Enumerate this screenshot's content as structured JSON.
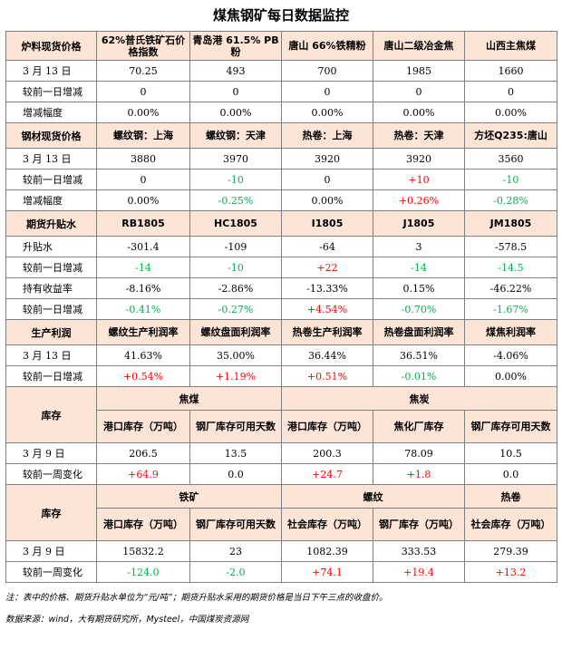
{
  "title": "煤焦钢矿每日数据监控",
  "s1": {
    "header": [
      "炉料现货价格",
      "62%普氏铁矿石价格指数",
      "青岛港 61.5% PB粉",
      "唐山 66%铁精粉",
      "唐山二级冶金焦",
      "山西主焦煤"
    ],
    "rows": [
      [
        "3 月 13 日",
        "70.25",
        "493",
        "700",
        "1985",
        "1660"
      ],
      [
        "较前一日增减",
        "0",
        "0",
        "0",
        "0",
        "0"
      ],
      [
        "增减幅度",
        "0.00%",
        "0.00%",
        "0.00%",
        "0.00%",
        "0.00%"
      ]
    ]
  },
  "s2": {
    "header": [
      "钢材现货价格",
      "螺纹钢：上海",
      "螺纹钢：天津",
      "热卷：上海",
      "热卷：天津",
      "方坯Q235:唐山"
    ],
    "rows": [
      [
        "3 月 13 日",
        "3880",
        "3970",
        "3920",
        "3920",
        "3560"
      ],
      [
        "较前一日增减",
        "0",
        "-10",
        "0",
        "+10",
        "-10"
      ],
      [
        "增减幅度",
        "0.00%",
        "-0.25%",
        "0.00%",
        "+0.26%",
        "-0.28%"
      ]
    ]
  },
  "s3": {
    "header": [
      "期货升贴水",
      "RB1805",
      "HC1805",
      "I1805",
      "J1805",
      "JM1805"
    ],
    "rows": [
      [
        "升贴水",
        "-301.4",
        "-109",
        "-64",
        "3",
        "-578.5"
      ],
      [
        "较前一日增减",
        "-14",
        "-10",
        "+22",
        "-14",
        "-14.5"
      ],
      [
        "持有收益率",
        "-8.16%",
        "-2.86%",
        "-13.33%",
        "0.15%",
        "-46.22%"
      ],
      [
        "较前一日增减",
        "-0.41%",
        "-0.27%",
        "+4.54%",
        "-0.70%",
        "-1.67%"
      ]
    ]
  },
  "s4": {
    "header": [
      "生产利润",
      "螺纹生产利润率",
      "螺纹盘面利润率",
      "热卷生产利润率",
      "热卷盘面利润率",
      "煤焦利润率"
    ],
    "rows": [
      [
        "3 月 13 日",
        "41.63%",
        "35.00%",
        "36.44%",
        "36.51%",
        "-4.06%"
      ],
      [
        "较前一日增减",
        "+0.54%",
        "+1.19%",
        "+0.51%",
        "-0.01%",
        "0.00%"
      ]
    ]
  },
  "s5": {
    "label": "库存",
    "groups": [
      "焦煤",
      "焦炭"
    ],
    "sub": [
      "港口库存（万吨）",
      "钢厂库存可用天数",
      "港口库存（万吨）",
      "焦化厂库存",
      "钢厂库存可用天数"
    ],
    "rows": [
      [
        "3 月 9 日",
        "206.5",
        "13.5",
        "200.3",
        "78.09",
        "10.5"
      ],
      [
        "较前一周变化",
        "+64.9",
        "0.0",
        "+24.7",
        "+1.8",
        "0.0"
      ]
    ]
  },
  "s6": {
    "label": "库存",
    "groups": [
      "铁矿",
      "螺纹",
      "热卷"
    ],
    "sub": [
      "港口库存（万吨）",
      "钢厂库存可用天数",
      "社会库存（万吨）",
      "钢厂库存（万吨）",
      "社会库存（万吨）"
    ],
    "rows": [
      [
        "3 月 9 日",
        "15832.2",
        "23",
        "1082.39",
        "333.53",
        "279.39"
      ],
      [
        "较前一周变化",
        "-124.0",
        "-2.0",
        "+74.1",
        "+19.4",
        "+13.2"
      ]
    ]
  },
  "notes": {
    "n1": "注：表中的价格、期货升贴水单位为“元/吨”；期货升贴水采用的期货价格是当日下午三点的收盘价。",
    "n2": "数据来源：wind，大有期货研究所，Mysteel，中国煤炭资源网"
  },
  "colors": {
    "header_bg": "#fce4d6",
    "up": "#ff0000",
    "down": "#00b050",
    "border": "#7f7f7f"
  }
}
